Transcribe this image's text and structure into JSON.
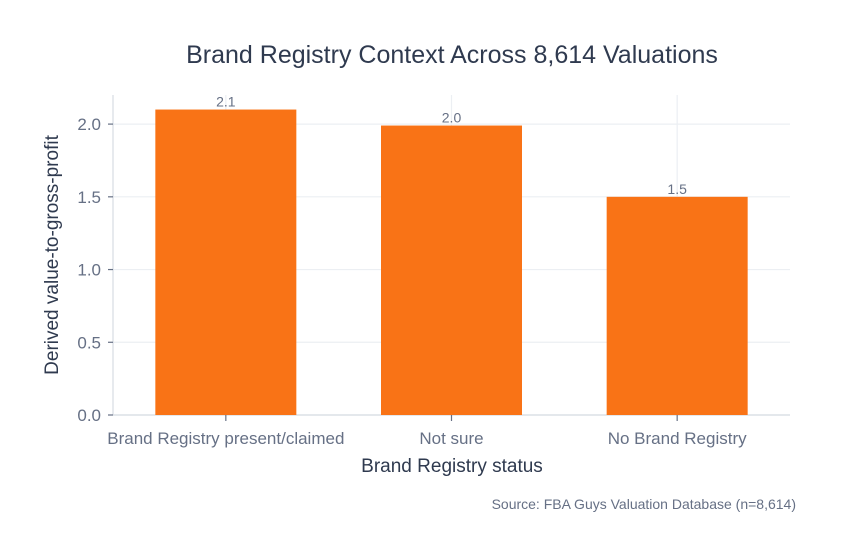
{
  "chart_data": {
    "type": "bar",
    "title": "Brand Registry Context Across 8,614 Valuations",
    "xlabel": "Brand Registry status",
    "ylabel": "Derived value-to-gross-profit",
    "categories": [
      "Brand Registry present/claimed",
      "Not sure",
      "No Brand Registry"
    ],
    "series": [
      {
        "values": [
          2.1,
          1.99,
          1.5
        ],
        "data_labels": [
          "2.1",
          "2.0",
          "1.5"
        ],
        "color": "#f97316"
      }
    ],
    "ylim": [
      0,
      2.2
    ],
    "yticks": [
      0.0,
      0.5,
      1.0,
      1.5,
      2.0
    ],
    "ytick_labels": [
      "0.0",
      "0.5",
      "1.0",
      "1.5",
      "2.0"
    ],
    "grid": true,
    "legend": "none"
  },
  "source_note": "Source: FBA Guys Valuation Database (n=8,614)",
  "colors": {
    "bar": "#f97316",
    "text": "#2f3a4f",
    "muted_text": "#667085",
    "grid": "#eceff3"
  }
}
